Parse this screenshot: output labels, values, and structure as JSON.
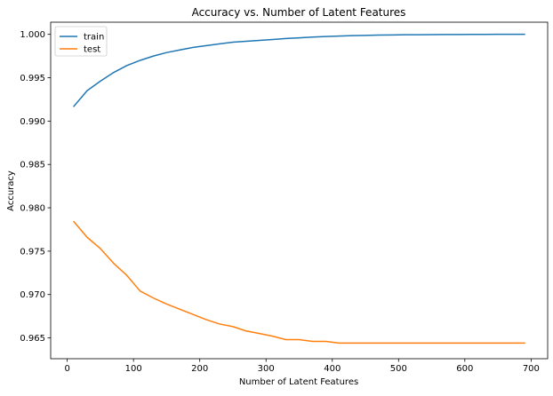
{
  "chart_data": {
    "type": "line",
    "title": "Accuracy vs. Number of Latent Features",
    "xlabel": "Number of Latent Features",
    "ylabel": "Accuracy",
    "xlim": [
      -25,
      725
    ],
    "ylim": [
      0.9626,
      1.0014
    ],
    "xticks": [
      0,
      100,
      200,
      300,
      400,
      500,
      600,
      700
    ],
    "xtick_labels": [
      "0",
      "100",
      "200",
      "300",
      "400",
      "500",
      "600",
      "700"
    ],
    "yticks": [
      0.965,
      0.97,
      0.975,
      0.98,
      0.985,
      0.99,
      0.995,
      1.0
    ],
    "ytick_labels": [
      "0.965",
      "0.970",
      "0.975",
      "0.980",
      "0.985",
      "0.990",
      "0.995",
      "1.000"
    ],
    "grid": false,
    "legend_position": "top-left",
    "x": [
      10,
      30,
      50,
      70,
      90,
      110,
      130,
      150,
      170,
      190,
      210,
      230,
      250,
      270,
      290,
      310,
      330,
      350,
      370,
      390,
      410,
      430,
      450,
      470,
      490,
      510,
      530,
      550,
      570,
      590,
      610,
      630,
      650,
      670,
      690
    ],
    "series": [
      {
        "name": "train",
        "color": "#1f77b4",
        "values": [
          0.9917,
          0.9935,
          0.9946,
          0.9956,
          0.9964,
          0.997,
          0.9975,
          0.9979,
          0.9982,
          0.9985,
          0.9987,
          0.9989,
          0.9991,
          0.9992,
          0.9993,
          0.9994,
          0.99952,
          0.9996,
          0.99968,
          0.99975,
          0.9998,
          0.99985,
          0.99988,
          0.99991,
          0.99993,
          0.99995,
          0.99996,
          0.99997,
          0.99998,
          0.99998,
          0.99999,
          0.99999,
          1.0,
          1.0,
          1.0
        ]
      },
      {
        "name": "test",
        "color": "#ff7f0e",
        "values": [
          0.9784,
          0.9766,
          0.9753,
          0.9736,
          0.9722,
          0.9704,
          0.9696,
          0.9689,
          0.9683,
          0.9677,
          0.9671,
          0.9666,
          0.9663,
          0.9658,
          0.9655,
          0.9652,
          0.9648,
          0.9648,
          0.9646,
          0.9646,
          0.9644,
          0.9644,
          0.9644,
          0.9644,
          0.9644,
          0.9644,
          0.9644,
          0.9644,
          0.9644,
          0.9644,
          0.9644,
          0.9644,
          0.9644,
          0.9644,
          0.9644
        ]
      }
    ]
  }
}
